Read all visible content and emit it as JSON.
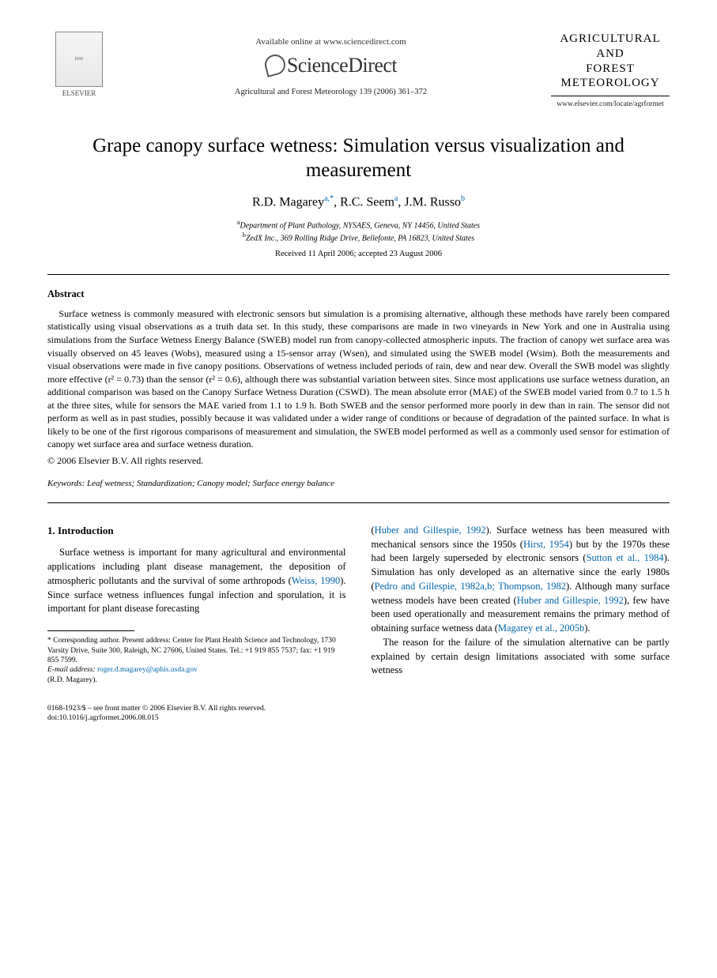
{
  "header": {
    "elsevier_label": "ELSEVIER",
    "available_online": "Available online at www.sciencedirect.com",
    "sciencedirect": "ScienceDirect",
    "journal_ref": "Agricultural and Forest Meteorology 139 (2006) 361–372",
    "journal_name_line1": "AGRICULTURAL",
    "journal_name_line2": "AND",
    "journal_name_line3": "FOREST",
    "journal_name_line4": "METEOROLOGY",
    "journal_url": "www.elsevier.com/locate/agrformet"
  },
  "title": "Grape canopy surface wetness: Simulation versus visualization and measurement",
  "authors": {
    "a1_name": "R.D. Magarey",
    "a1_sup": "a,",
    "a1_ast": "*",
    "a2_name": "R.C. Seem",
    "a2_sup": "a",
    "a3_name": "J.M. Russo",
    "a3_sup": "b"
  },
  "affiliations": {
    "a": "Department of Plant Pathology, NYSAES, Geneva, NY 14456, United States",
    "b": "ZedX Inc., 369 Rolling Ridge Drive, Bellefonte, PA 16823, United States"
  },
  "dates": "Received 11 April 2006; accepted 23 August 2006",
  "abstract": {
    "heading": "Abstract",
    "body": "Surface wetness is commonly measured with electronic sensors but simulation is a promising alternative, although these methods have rarely been compared statistically using visual observations as a truth data set. In this study, these comparisons are made in two vineyards in New York and one in Australia using simulations from the Surface Wetness Energy Balance (SWEB) model run from canopy-collected atmospheric inputs. The fraction of canopy wet surface area was visually observed on 45 leaves (Wobs), measured using a 15-sensor array (Wsen), and simulated using the SWEB model (Wsim). Both the measurements and visual observations were made in five canopy positions. Observations of wetness included periods of rain, dew and near dew. Overall the SWB model was slightly more effective (r² = 0.73) than the sensor (r² = 0.6), although there was substantial variation between sites. Since most applications use surface wetness duration, an additional comparison was based on the Canopy Surface Wetness Duration (CSWD). The mean absolute error (MAE) of the SWEB model varied from 0.7 to 1.5 h at the three sites, while for sensors the MAE varied from 1.1 to 1.9 h. Both SWEB and the sensor performed more poorly in dew than in rain. The sensor did not perform as well as in past studies, possibly because it was validated under a wider range of conditions or because of degradation of the painted surface. In what is likely to be one of the first rigorous comparisons of measurement and simulation, the SWEB model performed as well as a commonly used sensor for estimation of canopy wet surface area and surface wetness duration.",
    "copyright": "© 2006 Elsevier B.V. All rights reserved."
  },
  "keywords": {
    "label": "Keywords:",
    "text": " Leaf wetness; Standardization; Canopy model; Surface energy balance"
  },
  "intro": {
    "heading": "1. Introduction",
    "col1_p1_a": "Surface wetness is important for many agricultural and environmental applications including plant disease management, the deposition of atmospheric pollutants and the survival of some arthropods (",
    "col1_p1_cite1": "Weiss, 1990",
    "col1_p1_b": "). Since surface wetness influences fungal infection and sporulation, it is important for plant disease forecasting",
    "col2_p1_a": "(",
    "col2_p1_cite1": "Huber and Gillespie, 1992",
    "col2_p1_b": "). Surface wetness has been measured with mechanical sensors since the 1950s (",
    "col2_p1_cite2": "Hirst, 1954",
    "col2_p1_c": ") but by the 1970s these had been largely superseded by electronic sensors (",
    "col2_p1_cite3": "Sutton et al., 1984",
    "col2_p1_d": "). Simulation has only developed as an alternative since the early 1980s (",
    "col2_p1_cite4": "Pedro and Gillespie, 1982a,b; Thompson, 1982",
    "col2_p1_e": "). Although many surface wetness models have been created (",
    "col2_p1_cite5": "Huber and Gillespie, 1992",
    "col2_p1_f": "), few have been used operationally and measurement remains the primary method of obtaining surface wetness data (",
    "col2_p1_cite6": "Magarey et al., 2005b",
    "col2_p1_g": ").",
    "col2_p2": "The reason for the failure of the simulation alternative can be partly explained by certain design limitations associated with some surface wetness"
  },
  "footnote": {
    "corr": "* Corresponding author. Present address: Center for Plant Health Science and Technology, 1730 Varsity Drive, Suite 300, Raleigh, NC 27606, United States. Tel.: +1 919 855 7537; fax: +1 919 855 7599.",
    "email_label": "E-mail address:",
    "email": "roger.d.magarey@aphis.usda.gov",
    "email_who": "(R.D. Magarey)."
  },
  "footer": {
    "line1": "0168-1923/$ – see front matter © 2006 Elsevier B.V. All rights reserved.",
    "doi": "doi:10.1016/j.agrformet.2006.08.015"
  }
}
